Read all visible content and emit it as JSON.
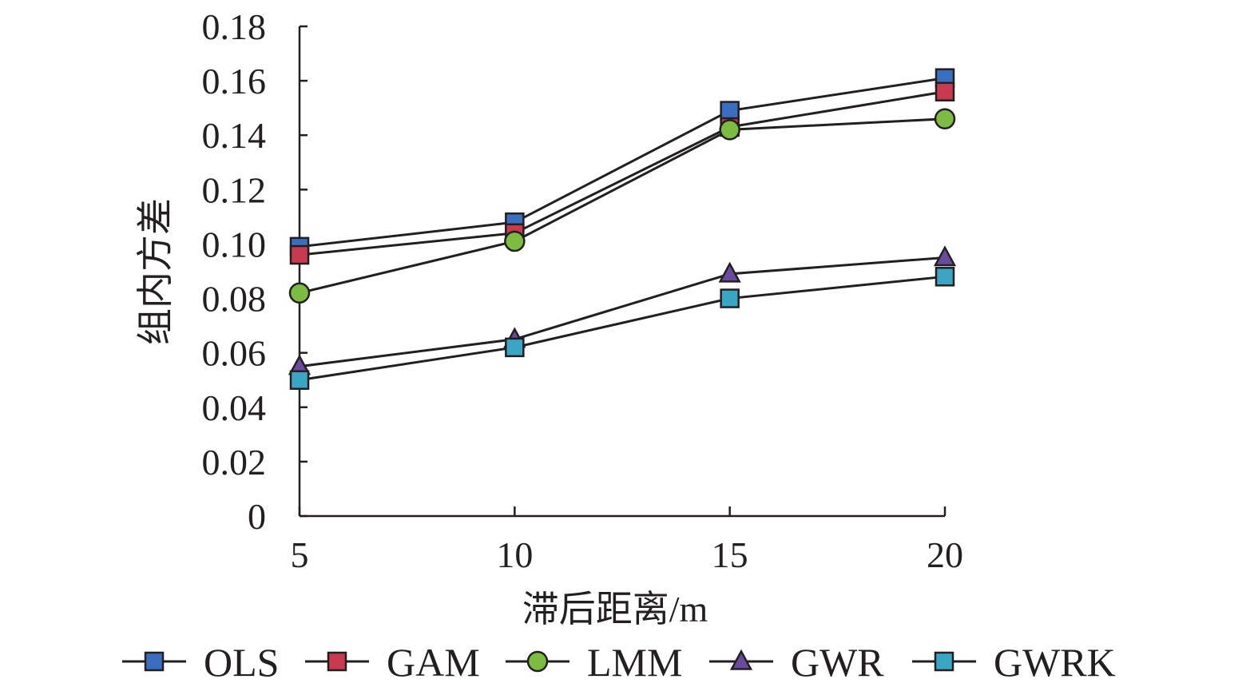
{
  "chart_data": {
    "type": "line",
    "xlabel": "滞后距离/m",
    "ylabel": "组内方差",
    "x": [
      5,
      10,
      15,
      20
    ],
    "x_tick_labels": [
      "5",
      "10",
      "15",
      "20"
    ],
    "xlim": [
      5,
      20
    ],
    "ylim": [
      0,
      0.18
    ],
    "y_ticks": [
      0,
      0.02,
      0.04,
      0.06,
      0.08,
      0.1,
      0.12,
      0.14,
      0.16,
      0.18
    ],
    "y_tick_labels": [
      "0",
      "0.02",
      "0.04",
      "0.06",
      "0.08",
      "0.10",
      "0.12",
      "0.14",
      "0.16",
      "0.18"
    ],
    "grid": false,
    "legend_position": "bottom",
    "series": [
      {
        "name": "OLS",
        "marker": "square",
        "color": "#3a6fc0",
        "values": [
          0.099,
          0.108,
          0.149,
          0.161
        ]
      },
      {
        "name": "GAM",
        "marker": "square",
        "color": "#c83a50",
        "values": [
          0.096,
          0.104,
          0.143,
          0.156
        ]
      },
      {
        "name": "LMM",
        "marker": "circle",
        "color": "#7dbc42",
        "values": [
          0.082,
          0.101,
          0.142,
          0.146
        ]
      },
      {
        "name": "GWR",
        "marker": "triangle",
        "color": "#6a4a9c",
        "values": [
          0.055,
          0.065,
          0.089,
          0.095
        ]
      },
      {
        "name": "GWRK",
        "marker": "square",
        "color": "#3aa6c4",
        "values": [
          0.05,
          0.062,
          0.08,
          0.088
        ]
      }
    ]
  }
}
